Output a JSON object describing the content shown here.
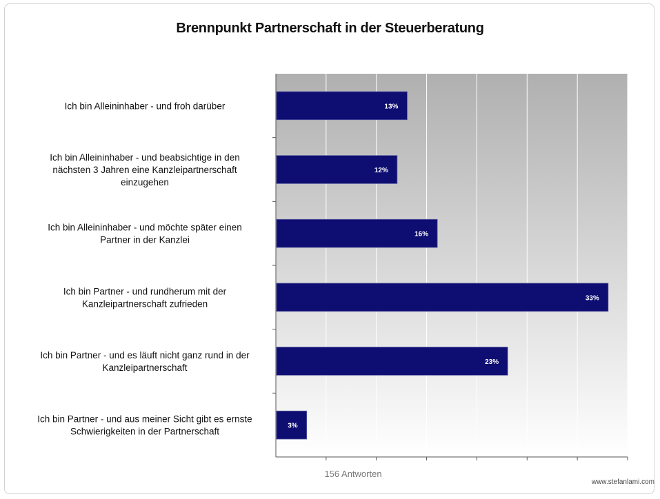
{
  "chart_data": {
    "type": "bar",
    "orientation": "horizontal",
    "title": "Brennpunkt Partnerschaft in der Steuerberatung",
    "xlabel": "156 Antworten",
    "ylabel": "",
    "xlim": [
      0,
      35
    ],
    "grid": true,
    "legend": "none",
    "bar_color": "#0d0d72",
    "categories": [
      [
        "Ich bin Alleininhaber - und froh darüber"
      ],
      [
        "Ich bin Alleininhaber - und beabsichtige in den",
        "nächsten 3 Jahren eine Kanzleipartnerschaft",
        "einzugehen"
      ],
      [
        "Ich bin Alleininhaber - und möchte später einen",
        "Partner in der Kanzlei"
      ],
      [
        "Ich bin Partner - und rundherum mit der",
        "Kanzleipartnerschaft zufrieden"
      ],
      [
        "Ich bin Partner - und es läuft nicht ganz rund in der",
        "Kanzleipartnerschaft"
      ],
      [
        "Ich bin Partner - und aus meiner Sicht gibt es ernste",
        "Schwierigkeiten in der Partnerschaft"
      ]
    ],
    "values": [
      13,
      12,
      16,
      33,
      23,
      3
    ],
    "data_labels": [
      "13%",
      "12%",
      "16%",
      "33%",
      "23%",
      "3%"
    ]
  },
  "watermark": "www.stefanlami.com"
}
